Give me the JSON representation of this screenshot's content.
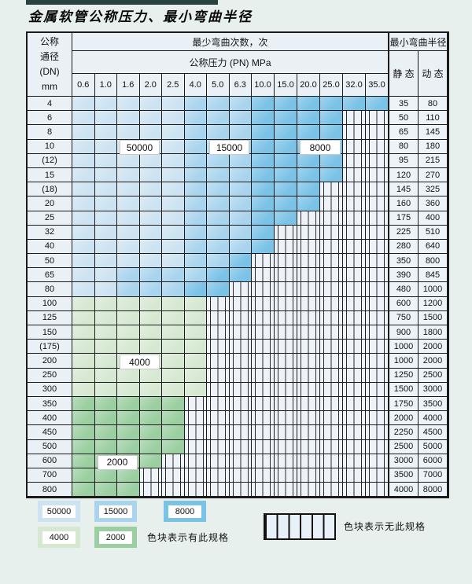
{
  "page": {
    "title": "金属软管公称压力、最小弯曲半径"
  },
  "table": {
    "dn_header_lines": [
      "公称",
      "通径",
      "(DN)",
      "mm"
    ],
    "cycles_header": "最少弯曲次数，次",
    "pressure_header": "公称压力 (PN) MPa",
    "radius_header": "最小弯曲半径",
    "static_label": "静 态",
    "dynamic_label": "动 态",
    "pressure_columns": [
      "0.6",
      "1.0",
      "1.6",
      "2.0",
      "2.5",
      "4.0",
      "5.0",
      "6.3",
      "10.0",
      "15.0",
      "20.0",
      "25.0",
      "32.0",
      "35.0"
    ],
    "band_colors": {
      "50000": "#cde3f1",
      "15000": "#a9d4ee",
      "8000": "#7bc2e7",
      "4000": "#d6e8d2",
      "2000": "#9bcfa1",
      "none": "hatched"
    },
    "rows": [
      {
        "dn": "4",
        "static": "35",
        "dynamic": "80",
        "bands": [
          [
            "50000",
            0,
            4
          ],
          [
            "15000",
            5,
            7
          ],
          [
            "8000",
            8,
            13
          ]
        ]
      },
      {
        "dn": "6",
        "static": "50",
        "dynamic": "110",
        "bands": [
          [
            "50000",
            0,
            4
          ],
          [
            "15000",
            5,
            7
          ],
          [
            "8000",
            8,
            11
          ],
          [
            "none",
            12,
            13
          ]
        ]
      },
      {
        "dn": "8",
        "static": "65",
        "dynamic": "145",
        "bands": [
          [
            "50000",
            0,
            4
          ],
          [
            "15000",
            5,
            7
          ],
          [
            "8000",
            8,
            11
          ],
          [
            "none",
            12,
            13
          ]
        ]
      },
      {
        "dn": "10",
        "static": "80",
        "dynamic": "180",
        "bands": [
          [
            "50000",
            0,
            4
          ],
          [
            "15000",
            5,
            7
          ],
          [
            "8000",
            8,
            11
          ],
          [
            "none",
            12,
            13
          ]
        ]
      },
      {
        "dn": "(12)",
        "static": "95",
        "dynamic": "215",
        "bands": [
          [
            "50000",
            0,
            4
          ],
          [
            "15000",
            5,
            7
          ],
          [
            "8000",
            8,
            11
          ],
          [
            "none",
            12,
            13
          ]
        ]
      },
      {
        "dn": "15",
        "static": "120",
        "dynamic": "270",
        "bands": [
          [
            "50000",
            0,
            4
          ],
          [
            "15000",
            5,
            7
          ],
          [
            "8000",
            8,
            11
          ],
          [
            "none",
            12,
            13
          ]
        ]
      },
      {
        "dn": "(18)",
        "static": "145",
        "dynamic": "325",
        "bands": [
          [
            "50000",
            0,
            4
          ],
          [
            "15000",
            5,
            7
          ],
          [
            "8000",
            8,
            10
          ],
          [
            "none",
            11,
            13
          ]
        ]
      },
      {
        "dn": "20",
        "static": "160",
        "dynamic": "360",
        "bands": [
          [
            "50000",
            0,
            4
          ],
          [
            "15000",
            5,
            7
          ],
          [
            "8000",
            8,
            10
          ],
          [
            "none",
            11,
            13
          ]
        ]
      },
      {
        "dn": "25",
        "static": "175",
        "dynamic": "400",
        "bands": [
          [
            "50000",
            0,
            4
          ],
          [
            "15000",
            5,
            7
          ],
          [
            "8000",
            8,
            9
          ],
          [
            "none",
            10,
            13
          ]
        ]
      },
      {
        "dn": "32",
        "static": "225",
        "dynamic": "510",
        "bands": [
          [
            "50000",
            0,
            4
          ],
          [
            "15000",
            5,
            7
          ],
          [
            "8000",
            8,
            8
          ],
          [
            "none",
            9,
            13
          ]
        ]
      },
      {
        "dn": "40",
        "static": "280",
        "dynamic": "640",
        "bands": [
          [
            "50000",
            0,
            4
          ],
          [
            "15000",
            5,
            7
          ],
          [
            "8000",
            8,
            8
          ],
          [
            "none",
            9,
            13
          ]
        ]
      },
      {
        "dn": "50",
        "static": "350",
        "dynamic": "800",
        "bands": [
          [
            "50000",
            0,
            4
          ],
          [
            "15000",
            5,
            6
          ],
          [
            "8000",
            7,
            7
          ],
          [
            "none",
            8,
            13
          ]
        ]
      },
      {
        "dn": "65",
        "static": "390",
        "dynamic": "845",
        "bands": [
          [
            "50000",
            0,
            1
          ],
          [
            "15000",
            2,
            5
          ],
          [
            "8000",
            6,
            7
          ],
          [
            "none",
            8,
            13
          ]
        ]
      },
      {
        "dn": "80",
        "static": "480",
        "dynamic": "1000",
        "bands": [
          [
            "50000",
            0,
            1
          ],
          [
            "15000",
            2,
            4
          ],
          [
            "8000",
            5,
            6
          ],
          [
            "none",
            7,
            13
          ]
        ]
      },
      {
        "dn": "100",
        "static": "600",
        "dynamic": "1200",
        "bands": [
          [
            "4000",
            0,
            5
          ],
          [
            "none",
            6,
            13
          ]
        ]
      },
      {
        "dn": "125",
        "static": "750",
        "dynamic": "1500",
        "bands": [
          [
            "4000",
            0,
            5
          ],
          [
            "none",
            6,
            13
          ]
        ]
      },
      {
        "dn": "150",
        "static": "900",
        "dynamic": "1800",
        "bands": [
          [
            "4000",
            0,
            5
          ],
          [
            "none",
            6,
            13
          ]
        ]
      },
      {
        "dn": "(175)",
        "static": "1000",
        "dynamic": "2000",
        "bands": [
          [
            "4000",
            0,
            5
          ],
          [
            "none",
            6,
            13
          ]
        ]
      },
      {
        "dn": "200",
        "static": "1000",
        "dynamic": "2000",
        "bands": [
          [
            "4000",
            0,
            5
          ],
          [
            "none",
            6,
            13
          ]
        ]
      },
      {
        "dn": "250",
        "static": "1250",
        "dynamic": "2500",
        "bands": [
          [
            "4000",
            0,
            5
          ],
          [
            "none",
            6,
            13
          ]
        ]
      },
      {
        "dn": "300",
        "static": "1500",
        "dynamic": "3000",
        "bands": [
          [
            "4000",
            0,
            5
          ],
          [
            "none",
            6,
            13
          ]
        ]
      },
      {
        "dn": "350",
        "static": "1750",
        "dynamic": "3500",
        "bands": [
          [
            "2000",
            0,
            4
          ],
          [
            "none",
            5,
            13
          ]
        ]
      },
      {
        "dn": "400",
        "static": "2000",
        "dynamic": "4000",
        "bands": [
          [
            "2000",
            0,
            4
          ],
          [
            "none",
            5,
            13
          ]
        ]
      },
      {
        "dn": "450",
        "static": "2250",
        "dynamic": "4500",
        "bands": [
          [
            "2000",
            0,
            4
          ],
          [
            "none",
            5,
            13
          ]
        ]
      },
      {
        "dn": "500",
        "static": "2500",
        "dynamic": "5000",
        "bands": [
          [
            "2000",
            0,
            4
          ],
          [
            "none",
            5,
            13
          ]
        ]
      },
      {
        "dn": "600",
        "static": "3000",
        "dynamic": "6000",
        "bands": [
          [
            "2000",
            0,
            3
          ],
          [
            "none",
            4,
            13
          ]
        ]
      },
      {
        "dn": "700",
        "static": "3500",
        "dynamic": "7000",
        "bands": [
          [
            "2000",
            0,
            2
          ],
          [
            "none",
            3,
            13
          ]
        ]
      },
      {
        "dn": "800",
        "static": "4000",
        "dynamic": "8000",
        "bands": [
          [
            "2000",
            0,
            2
          ],
          [
            "none",
            3,
            13
          ]
        ]
      }
    ]
  },
  "overlay_labels": [
    {
      "text": "50000",
      "dn": "10",
      "cols": [
        2,
        3
      ]
    },
    {
      "text": "15000",
      "dn": "10",
      "cols": [
        6,
        7
      ]
    },
    {
      "text": "8000",
      "dn": "10",
      "cols": [
        10,
        11
      ]
    },
    {
      "text": "4000",
      "dn": "200",
      "cols": [
        2,
        3
      ]
    },
    {
      "text": "2000",
      "dn": "600",
      "cols": [
        1,
        2
      ]
    }
  ],
  "legend": {
    "available_label": "色块表示有此规格",
    "unavailable_label": "色块表示无此规格",
    "items": [
      {
        "value": "50000",
        "color": "#cde3f1"
      },
      {
        "value": "15000",
        "color": "#a9d4ee"
      },
      {
        "value": "8000",
        "color": "#7bc2e7"
      },
      {
        "value": "4000",
        "color": "#d6e8d2"
      },
      {
        "value": "2000",
        "color": "#9bcfa1"
      }
    ]
  }
}
